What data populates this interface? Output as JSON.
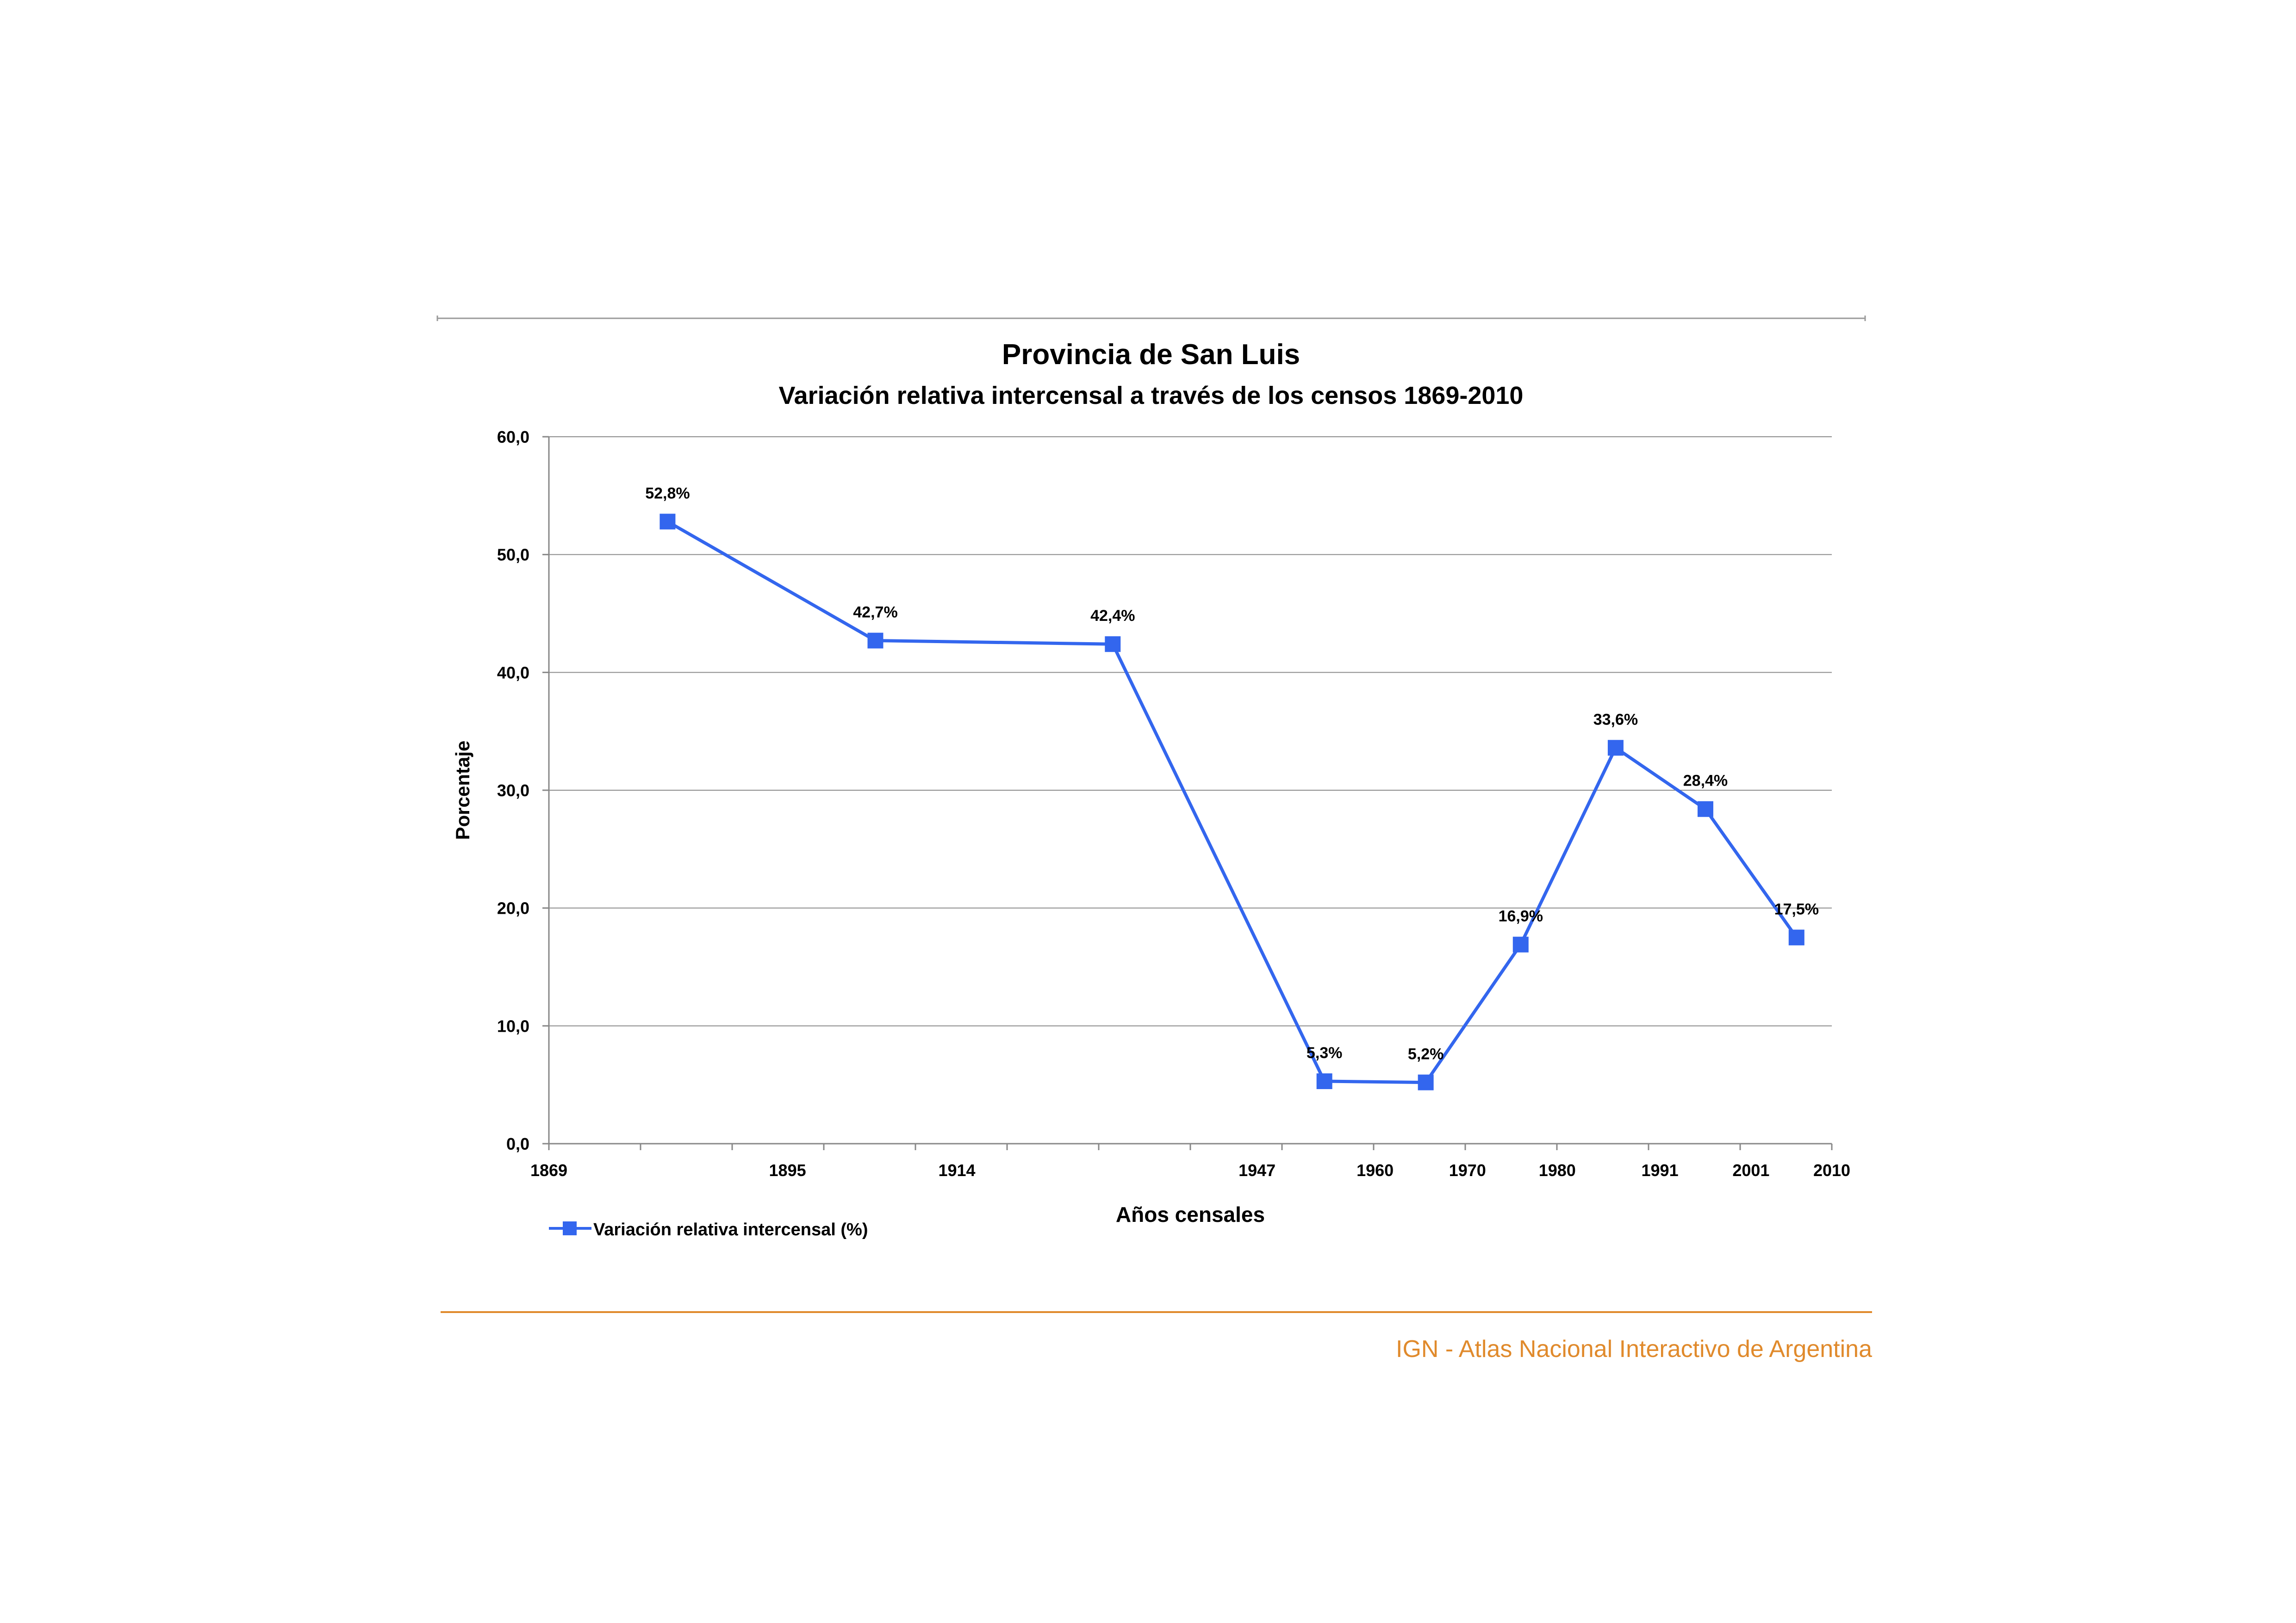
{
  "chart_data": {
    "type": "line",
    "title": "Provincia de San Luis",
    "subtitle": "Variación relativa intercensal a través de los censos 1869-2010",
    "xlabel": "Años censales",
    "ylabel": "Porcentaje",
    "x_tick_labels": [
      "1869",
      "1895",
      "1914",
      "1947",
      "1960",
      "1970",
      "1980",
      "1991",
      "2001",
      "2010"
    ],
    "y_tick_labels": [
      "0,0",
      "10,0",
      "20,0",
      "30,0",
      "40,0",
      "50,0",
      "60,0"
    ],
    "ylim": [
      0,
      60
    ],
    "grid": true,
    "legend_position": "bottom-left",
    "series": [
      {
        "name": "Variación relativa intercensal (%)",
        "color": "#3366ee",
        "marker": "square",
        "values": [
          52.8,
          42.7,
          42.4,
          5.3,
          5.2,
          16.9,
          33.6,
          28.4,
          17.5
        ],
        "data_labels": [
          "52,8%",
          "42,7%",
          "42,4%",
          "5,3%",
          "5,2%",
          "16,9%",
          "33,6%",
          "28,4%",
          "17,5%"
        ]
      }
    ]
  },
  "footer": {
    "text": "IGN - Atlas Nacional Interactivo de Argentina",
    "color": "#e08a2c"
  }
}
